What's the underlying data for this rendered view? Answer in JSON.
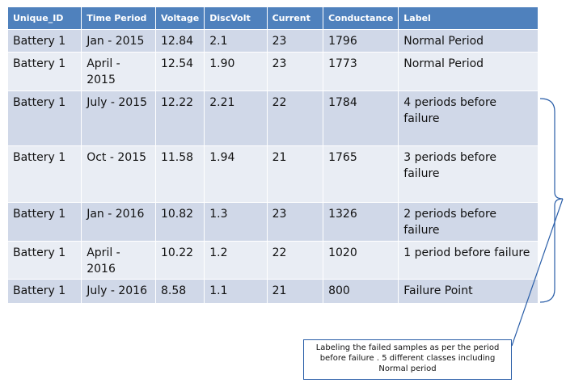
{
  "table": {
    "headers": [
      "Unique_ID",
      "Time Period",
      "Voltage",
      "DiscVolt",
      "Current",
      "Conductance",
      "Label"
    ],
    "rows": [
      [
        "Battery 1",
        "Jan - 2015",
        "12.84",
        "2.1",
        "23",
        "1796",
        "Normal Period"
      ],
      [
        "Battery 1",
        "April - 2015",
        "12.54",
        "1.90",
        "23",
        "1773",
        "Normal Period"
      ],
      [
        "Battery 1",
        "July - 2015",
        "12.22",
        "2.21",
        "22",
        "1784",
        "4 periods before failure"
      ],
      [
        "Battery 1",
        "Oct - 2015",
        "11.58",
        "1.94",
        "21",
        "1765",
        "3 periods before failure"
      ],
      [
        "Battery 1",
        "Jan - 2016",
        "10.82",
        "1.3",
        "23",
        "1326",
        "2 periods before failure"
      ],
      [
        "Battery 1",
        "April - 2016",
        "10.22",
        "1.2",
        "22",
        "1020",
        "1 period before failure"
      ],
      [
        "Battery 1",
        "July - 2016",
        "8.58",
        "1.1",
        "21",
        "800",
        "Failure Point"
      ]
    ]
  },
  "callout": {
    "text": "Labeling the failed samples  as per the period before failure .  5 different classes including Normal period"
  },
  "colors": {
    "header_bg": "#4f81bd",
    "row_odd": "#d0d8e8",
    "row_even": "#e9edf4",
    "connector": "#2a5ea8"
  }
}
